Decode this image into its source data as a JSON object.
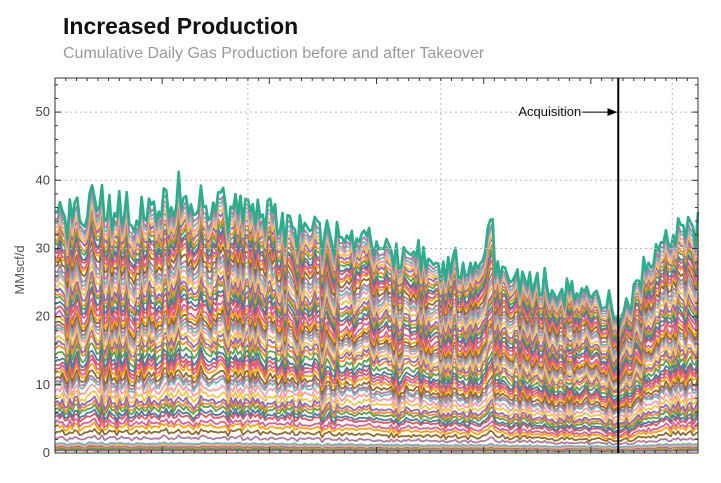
{
  "chart_data": {
    "type": "area",
    "title": "Increased Production",
    "subtitle": "Cumulative Daily Gas Production before and after Takeover",
    "ylabel": "MMscf/d",
    "xlabel": "",
    "ylim": [
      0,
      55
    ],
    "yticks": [
      "0",
      "10",
      "20",
      "30",
      "40",
      "50"
    ],
    "x_tick_labels": [],
    "x_range": [
      0,
      1
    ],
    "grid": true,
    "legend": "none",
    "stacked": true,
    "series_count": 58,
    "top_envelope": {
      "x": [
        0.0,
        0.05,
        0.1,
        0.15,
        0.2,
        0.25,
        0.3,
        0.35,
        0.4,
        0.45,
        0.5,
        0.55,
        0.6,
        0.65,
        0.7,
        0.75,
        0.8,
        0.85,
        0.876,
        0.9,
        0.95,
        1.0
      ],
      "y": [
        36,
        38.5,
        37.5,
        37,
        38,
        40,
        37.5,
        36,
        34.5,
        33,
        32,
        31,
        29.5,
        29.5,
        28,
        26.5,
        25,
        23.5,
        22,
        26,
        33,
        36
      ]
    },
    "annotations": [
      {
        "label": "Acquisition",
        "x": 0.876,
        "y_label": 50
      }
    ],
    "colors": {
      "top_series": "#2aae8c",
      "palette": [
        "#e15759",
        "#4e79a7",
        "#59a14f",
        "#f28e2b",
        "#9467bd",
        "#edc948",
        "#ff9da7",
        "#76b7b2",
        "#b07aa1",
        "#8c6d31",
        "#ffa600",
        "#d65f9e"
      ],
      "axis": "#333333",
      "grid": "#bbbbbb",
      "marker": "#000000"
    }
  }
}
